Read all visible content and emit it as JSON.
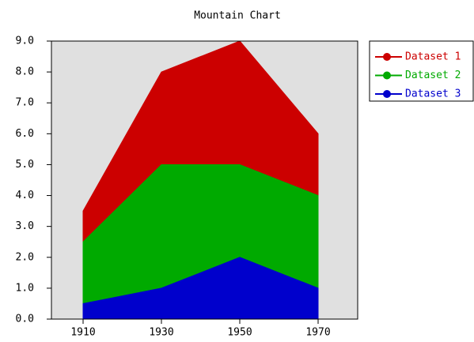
{
  "chart_data": {
    "type": "area",
    "title": "Mountain Chart",
    "categories": [
      "1910",
      "1930",
      "1950",
      "1970"
    ],
    "series": [
      {
        "name": "Dataset 1",
        "color": "#cc0000",
        "values": [
          3.5,
          8,
          9,
          6
        ]
      },
      {
        "name": "Dataset 2",
        "color": "#00aa00",
        "values": [
          2.5,
          5,
          5,
          4
        ]
      },
      {
        "name": "Dataset 3",
        "color": "#0000cc",
        "values": [
          0.5,
          1,
          2,
          1
        ]
      }
    ],
    "ylim": [
      0,
      9
    ],
    "yticks": [
      {
        "value": 0,
        "label": "0.0"
      },
      {
        "value": 1,
        "label": "1.0"
      },
      {
        "value": 2,
        "label": "2.0"
      },
      {
        "value": 3,
        "label": "3.0"
      },
      {
        "value": 4,
        "label": "4.0"
      },
      {
        "value": 5,
        "label": "5.0"
      },
      {
        "value": 6,
        "label": "6.0"
      },
      {
        "value": 7,
        "label": "7.0"
      },
      {
        "value": 8,
        "label": "8.0"
      },
      {
        "value": 9,
        "label": "9.0"
      }
    ],
    "legend": "right"
  }
}
